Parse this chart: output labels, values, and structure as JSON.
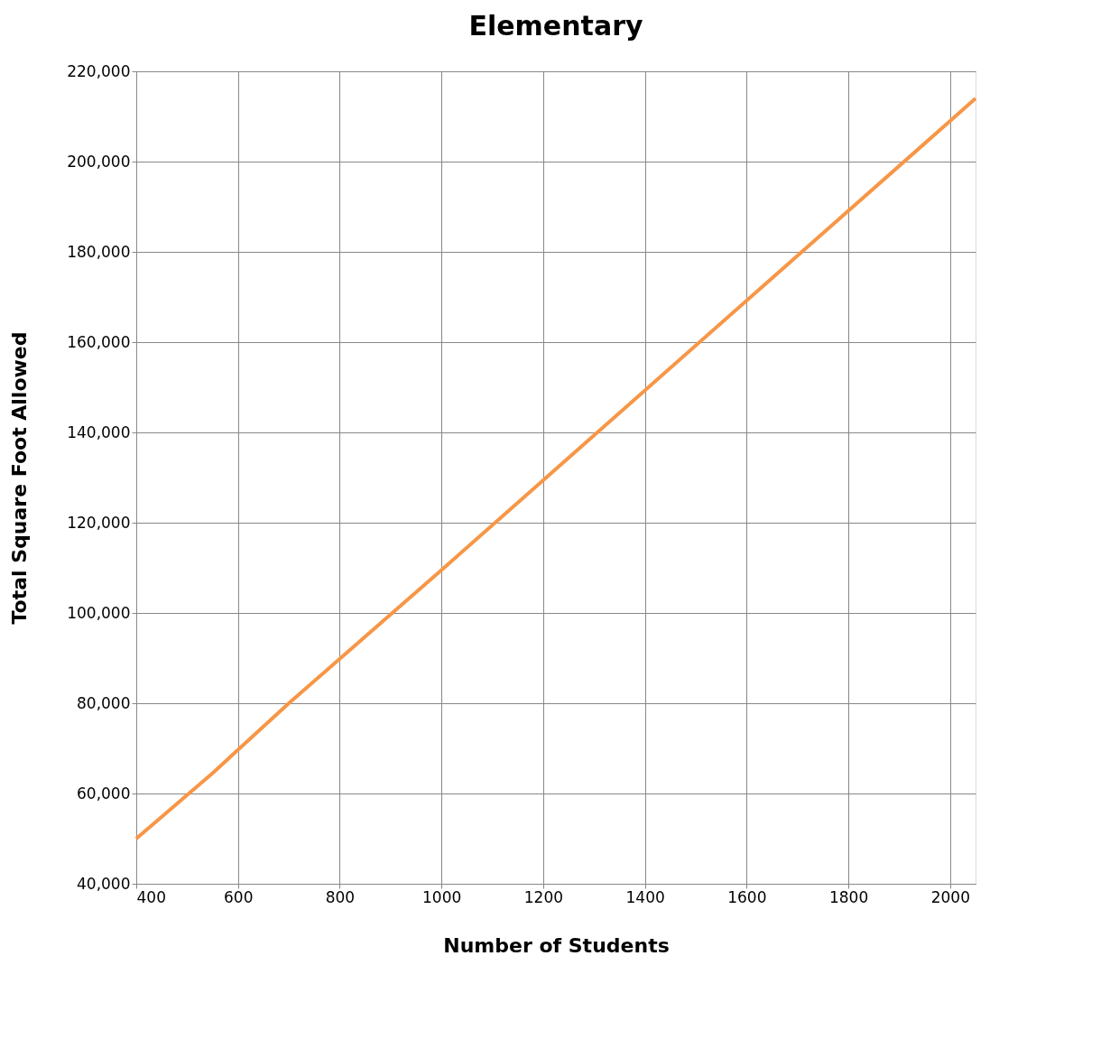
{
  "chart_data": {
    "type": "line",
    "title": "Elementary",
    "xlabel": "Number of Students",
    "ylabel": "Total Square Foot Allowed",
    "series": [
      {
        "color": "#f79646",
        "x": [
          400,
          550,
          700,
          1000,
          2000,
          2050
        ],
        "values": [
          50000,
          64500,
          80000,
          109500,
          209000,
          214000
        ]
      }
    ],
    "xlim": [
      400,
      2050
    ],
    "xticks": [
      400,
      600,
      800,
      1000,
      1200,
      1400,
      1600,
      1800,
      2000
    ],
    "ylim": [
      40000,
      220000
    ],
    "yticks": [
      {
        "value": 40000,
        "label": "40,000"
      },
      {
        "value": 60000,
        "label": "60,000"
      },
      {
        "value": 80000,
        "label": "80,000"
      },
      {
        "value": 100000,
        "label": "100,000"
      },
      {
        "value": 120000,
        "label": "120,000"
      },
      {
        "value": 140000,
        "label": "140,000"
      },
      {
        "value": 160000,
        "label": "160,000"
      },
      {
        "value": 180000,
        "label": "180,000"
      },
      {
        "value": 200000,
        "label": "200,000"
      },
      {
        "value": 220000,
        "label": "220,000"
      }
    ],
    "grid": true,
    "legend": false,
    "marker": "none",
    "line_style": "solid"
  }
}
